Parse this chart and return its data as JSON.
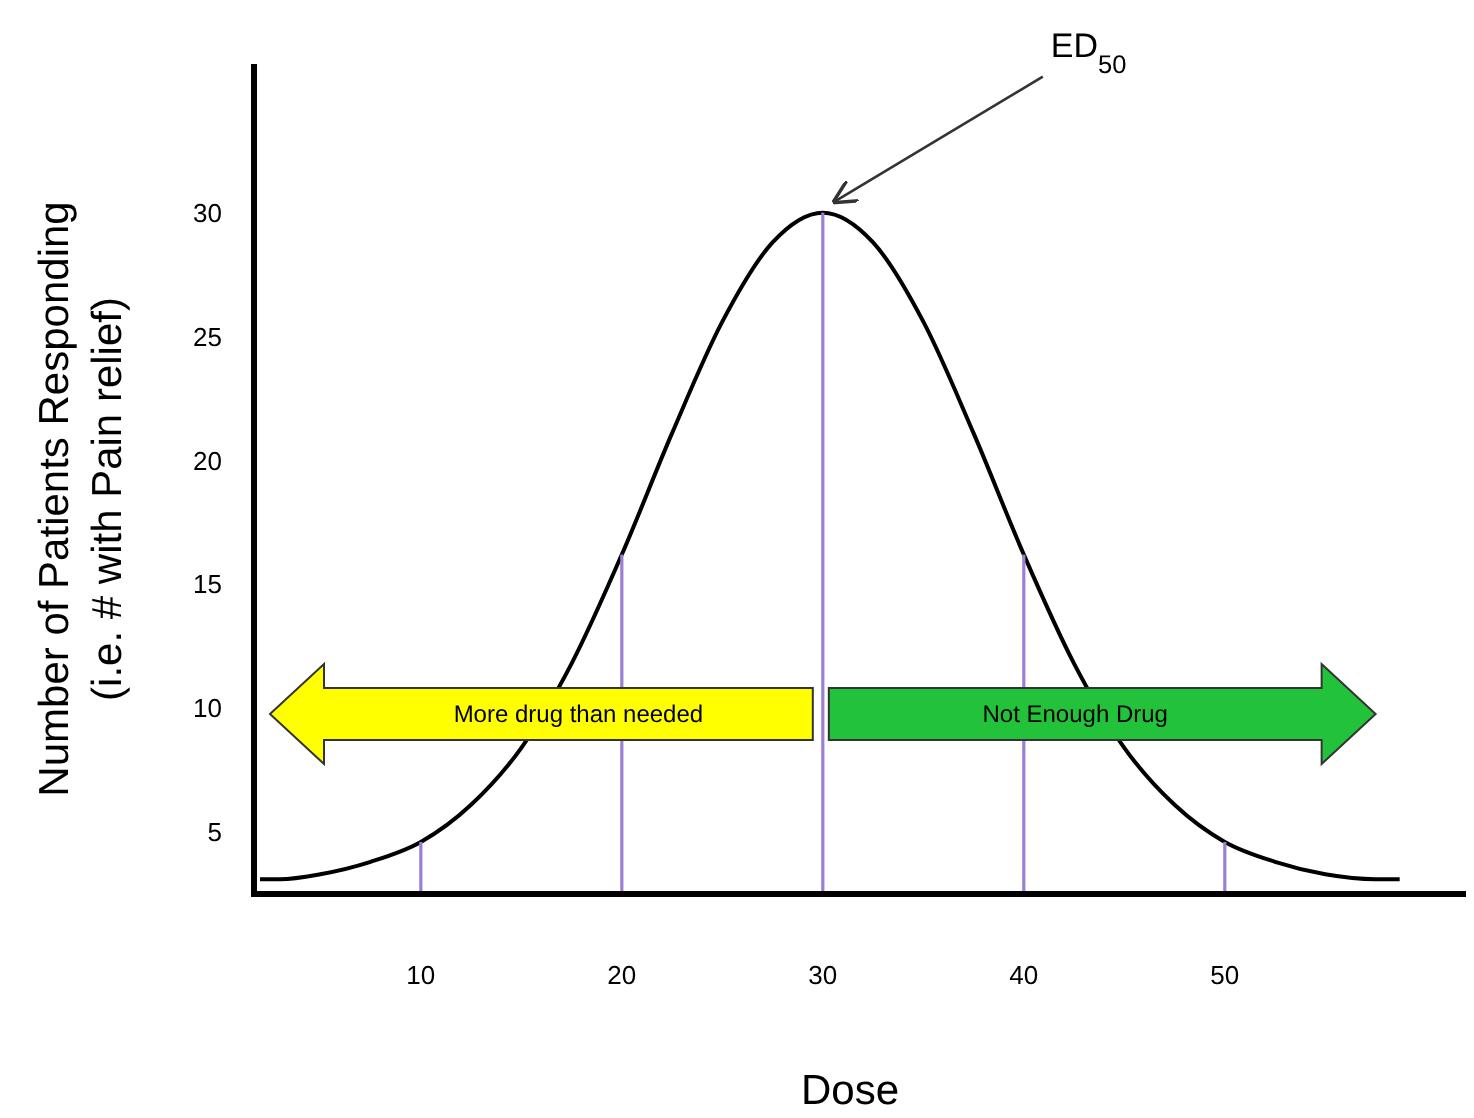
{
  "chart_data": {
    "type": "line",
    "xlabel": "Dose",
    "ylabel": "Number of Patients Responding\n(i.e. # with Pain relief)",
    "xlim": [
      1.7,
      62
    ],
    "ylim": [
      2.5,
      36
    ],
    "xticks": [
      10,
      20,
      30,
      40,
      50
    ],
    "yticks": [
      5,
      10,
      15,
      20,
      25,
      30
    ],
    "grid": false,
    "marker": "none",
    "line_style": "solid",
    "series": [
      {
        "color": "#000000",
        "x": [
          2,
          3,
          5,
          7.5,
          10,
          12.5,
          15,
          17.5,
          20,
          22.5,
          25,
          27.5,
          30,
          32.5,
          35,
          37.5,
          40,
          42.5,
          45,
          47.5,
          50,
          52.5,
          55,
          57.5,
          58.7
        ],
        "values": [
          3.1,
          3.1,
          3.3,
          3.8,
          4.6,
          6.1,
          8.4,
          11.8,
          16.2,
          21.1,
          25.6,
          28.8,
          30,
          28.8,
          25.6,
          21.1,
          16.2,
          11.8,
          8.4,
          6.1,
          4.6,
          3.8,
          3.3,
          3.1,
          3.1
        ]
      },
      {
        "type": "bar",
        "color": "#9b7fd4",
        "x": [
          10,
          20,
          30,
          40,
          50
        ],
        "values": [
          4.6,
          16.2,
          30,
          16.2,
          4.6
        ]
      }
    ],
    "annotations": [
      {
        "text": "ED$_{50}$",
        "x": 30,
        "y": 30
      },
      "More drug than needed",
      "Not Enough Drug"
    ]
  }
}
